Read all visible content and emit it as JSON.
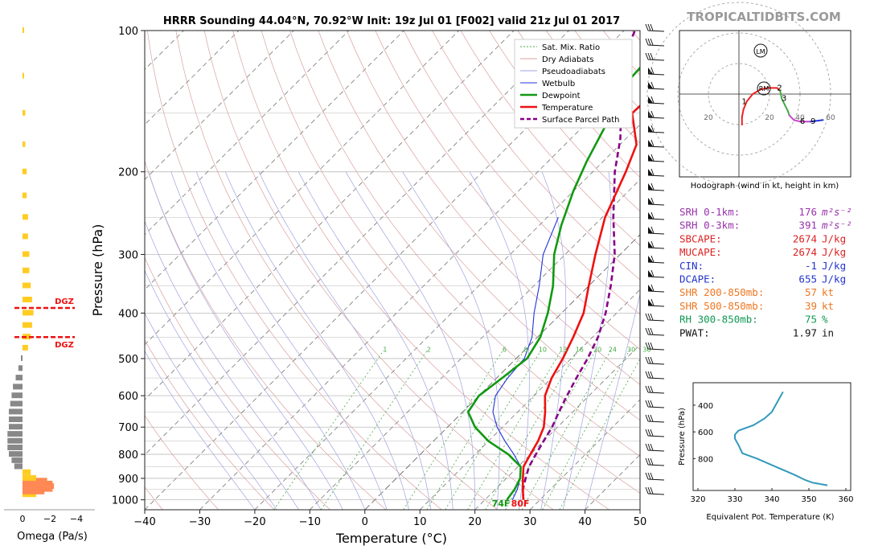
{
  "header": {
    "title": "HRRR Sounding 44.04°N, 70.92°W Init: 19z Jul 01 [F002] valid 21z Jul 01 2017",
    "brand": "TROPICALTIDBITS.COM"
  },
  "colors": {
    "temperature": "#ee1111",
    "dewpoint": "#119911",
    "wetbulb": "#2233dd",
    "parcel": "#880088",
    "dry_adiabat": "#d9a0a0",
    "pseudo_adiabat": "#9fa3dd",
    "mix_ratio": "#44aa44",
    "omega_pos": "#ffcc22",
    "omega_neg": "#888888",
    "omega_strong": "#ff8855",
    "dgz": "#ee1111",
    "theta_e": "#3399bb"
  },
  "omega_panel": {
    "xlabel": "Omega (Pa/s)",
    "ticks": [
      "0",
      "−2",
      "−4"
    ],
    "dgz_label": "DGZ",
    "dgz_levels_hpa": [
      390,
      450
    ]
  },
  "legend": {
    "items": [
      {
        "label": "Sat. Mix. Ratio",
        "style": "dotted",
        "color": "#44aa44"
      },
      {
        "label": "Dry Adiabats",
        "style": "solid-thin",
        "color": "#d9a0a0"
      },
      {
        "label": "Pseudoadiabats",
        "style": "solid-thin",
        "color": "#9fa3dd"
      },
      {
        "label": "Wetbulb",
        "style": "solid",
        "color": "#2233dd"
      },
      {
        "label": "Dewpoint",
        "style": "solid-thick",
        "color": "#119911"
      },
      {
        "label": "Temperature",
        "style": "solid-thick",
        "color": "#ee1111"
      },
      {
        "label": "Surface Parcel Path",
        "style": "dashed",
        "color": "#880088"
      }
    ]
  },
  "surface_labels": {
    "dewpoint": "74F",
    "temperature": "80F"
  },
  "mixing_ratio_labels": [
    "1",
    "2",
    "6",
    "8",
    "10",
    "13",
    "16",
    "20",
    "24",
    "30",
    "36"
  ],
  "hodograph": {
    "title": "Hodograph (wind in kt, height in km)",
    "ring_labels": [
      "20",
      "20",
      "40",
      "60"
    ],
    "height_labels": [
      "1",
      "2",
      "3",
      "6",
      "9"
    ],
    "lm_label": "LM",
    "rm_label": "RM"
  },
  "indices": [
    {
      "label": "SRH 0-1km:",
      "value": "176",
      "unit": "m²s⁻²",
      "color": "#9933aa"
    },
    {
      "label": "SRH 0-3km:",
      "value": "391",
      "unit": "m²s⁻²",
      "color": "#9933aa"
    },
    {
      "label": "SBCAPE:",
      "value": "2674",
      "unit": "J/kg",
      "color": "#dd2222"
    },
    {
      "label": "MUCAPE:",
      "value": "2674",
      "unit": "J/kg",
      "color": "#dd2222"
    },
    {
      "label": "CIN:",
      "value": "-1",
      "unit": "J/kg",
      "color": "#2233cc"
    },
    {
      "label": "DCAPE:",
      "value": "655",
      "unit": "J/kg",
      "color": "#2233cc"
    },
    {
      "label": "SHR 200-850mb:",
      "value": "57",
      "unit": "kt",
      "color": "#ee7722"
    },
    {
      "label": "SHR 500-850mb:",
      "value": "39",
      "unit": "kt",
      "color": "#ee7722"
    },
    {
      "label": "RH 300-850mb:",
      "value": "75",
      "unit": "%",
      "color": "#119955"
    },
    {
      "label": "PWAT:",
      "value": "1.97",
      "unit": "in",
      "color": "#111111"
    }
  ],
  "theta_e_panel": {
    "xlabel": "Equivalent Pot. Temperature (K)",
    "ylabel": "Pressure (hPa)",
    "xticks": [
      "320",
      "330",
      "340",
      "350",
      "360"
    ],
    "yticks": [
      "400",
      "600",
      "800"
    ]
  },
  "chart_data": [
    {
      "type": "line",
      "subtype": "skew-t log-p",
      "title": "HRRR Sounding 44.04°N, 70.92°W Init: 19z Jul 01 [F002] valid 21z Jul 01 2017",
      "xlabel": "Temperature (°C)",
      "ylabel": "Pressure (hPa)",
      "xlim": [
        -40,
        50
      ],
      "ylim": [
        1050,
        100
      ],
      "x_ticks": [
        "−40",
        "−30",
        "−20",
        "−10",
        "0",
        "10",
        "20",
        "30",
        "40",
        "50"
      ],
      "y_ticks": [
        "100",
        "200",
        "300",
        "400",
        "500",
        "600",
        "700",
        "800",
        "900",
        "1000"
      ],
      "y_scale": "log",
      "legend": "top-right",
      "series": [
        {
          "name": "Temperature",
          "points": [
            [
              27,
              1000
            ],
            [
              25,
              950
            ],
            [
              23,
              900
            ],
            [
              21,
              850
            ],
            [
              20,
              800
            ],
            [
              19,
              750
            ],
            [
              17.5,
              700
            ],
            [
              15,
              650
            ],
            [
              12,
              600
            ],
            [
              10,
              550
            ],
            [
              8.5,
              500
            ],
            [
              6.5,
              450
            ],
            [
              4,
              400
            ],
            [
              0,
              350
            ],
            [
              -4.5,
              300
            ],
            [
              -9.5,
              250
            ],
            [
              -14,
              200
            ],
            [
              -17,
              175
            ],
            [
              -23.5,
              150
            ],
            [
              -23,
              125
            ],
            [
              -21,
              100
            ]
          ]
        },
        {
          "name": "Dewpoint",
          "points": [
            [
              24,
              1000
            ],
            [
              23.5,
              950
            ],
            [
              22.5,
              900
            ],
            [
              20.5,
              850
            ],
            [
              16,
              800
            ],
            [
              10,
              750
            ],
            [
              5,
              700
            ],
            [
              1,
              650
            ],
            [
              0,
              600
            ],
            [
              1,
              550
            ],
            [
              2,
              500
            ],
            [
              0.5,
              450
            ],
            [
              -2.5,
              400
            ],
            [
              -6.5,
              350
            ],
            [
              -12,
              300
            ],
            [
              -16,
              260
            ],
            [
              -20,
              220
            ],
            [
              -23,
              190
            ],
            [
              -26,
              160
            ],
            [
              -30,
              130
            ],
            [
              -31,
              100
            ]
          ]
        },
        {
          "name": "Wetbulb",
          "points": [
            [
              25,
              1000
            ],
            [
              24,
              950
            ],
            [
              22.5,
              900
            ],
            [
              20.5,
              850
            ],
            [
              17,
              800
            ],
            [
              13,
              750
            ],
            [
              9,
              700
            ],
            [
              5.5,
              650
            ],
            [
              3,
              600
            ],
            [
              2,
              550
            ],
            [
              1.5,
              500
            ],
            [
              -1,
              450
            ],
            [
              -5,
              400
            ],
            [
              -9,
              350
            ],
            [
              -14,
              300
            ],
            [
              -18,
              250
            ]
          ]
        },
        {
          "name": "Surface Parcel Path",
          "points": [
            [
              27,
              1000
            ],
            [
              25,
              950
            ],
            [
              23.5,
              900
            ],
            [
              22,
              850
            ],
            [
              21,
              800
            ],
            [
              20,
              750
            ],
            [
              19,
              700
            ],
            [
              17.5,
              650
            ],
            [
              16,
              600
            ],
            [
              14.5,
              550
            ],
            [
              13,
              500
            ],
            [
              11,
              450
            ],
            [
              8,
              400
            ],
            [
              4,
              350
            ],
            [
              -1,
              300
            ],
            [
              -8,
              250
            ],
            [
              -16,
              200
            ],
            [
              -21,
              170
            ],
            [
              -28,
              140
            ],
            [
              -34,
              120
            ],
            [
              -36,
              110
            ],
            [
              -38,
              100
            ]
          ]
        }
      ]
    },
    {
      "type": "line",
      "title": "Hodograph",
      "xlabel": "Hodograph (wind in kt, height in km)",
      "points_kt": [
        [
          2,
          -20
        ],
        [
          2,
          -15
        ],
        [
          3,
          -10
        ],
        [
          5,
          -5
        ],
        [
          9,
          0
        ],
        [
          14,
          3
        ],
        [
          19,
          4
        ],
        [
          25,
          4
        ],
        [
          27,
          2
        ],
        [
          28,
          -3
        ],
        [
          30,
          -7
        ],
        [
          32,
          -11
        ],
        [
          33,
          -14
        ],
        [
          36,
          -17
        ],
        [
          40,
          -18
        ],
        [
          47,
          -18
        ],
        [
          55,
          -17
        ]
      ]
    },
    {
      "type": "line",
      "title": "Equivalent Pot. Temperature",
      "xlabel": "Equivalent Pot. Temperature (K)",
      "ylabel": "Pressure (hPa)",
      "xlim": [
        320,
        360
      ],
      "ylim": [
        1000,
        300
      ],
      "points": [
        [
          355,
          1000
        ],
        [
          351,
          980
        ],
        [
          349,
          960
        ],
        [
          346,
          920
        ],
        [
          341,
          860
        ],
        [
          336,
          800
        ],
        [
          332,
          760
        ],
        [
          331,
          700
        ],
        [
          330,
          650
        ],
        [
          330,
          620
        ],
        [
          331,
          590
        ],
        [
          335,
          550
        ],
        [
          338,
          500
        ],
        [
          340,
          450
        ],
        [
          341,
          400
        ],
        [
          342,
          350
        ],
        [
          343,
          300
        ]
      ]
    },
    {
      "type": "bar",
      "title": "Omega",
      "xlabel": "Omega (Pa/s)",
      "levels_hpa": [
        975,
        962,
        950,
        937,
        925,
        912,
        900,
        875,
        850,
        825,
        800,
        775,
        750,
        725,
        700,
        675,
        650,
        625,
        600,
        575,
        550,
        525,
        500,
        475,
        450,
        425,
        400,
        375,
        350,
        325,
        300,
        275,
        250,
        225,
        200,
        175,
        150,
        125,
        100
      ],
      "values": [
        -1.0,
        -1.6,
        -2.2,
        -2.3,
        -2.2,
        -1.8,
        -1.0,
        -0.6,
        0.6,
        0.8,
        1.0,
        1.1,
        1.1,
        1.1,
        1.0,
        1.0,
        1.0,
        0.9,
        0.8,
        0.7,
        0.5,
        0.3,
        0.1,
        -0.4,
        -0.6,
        -0.7,
        -0.8,
        -0.7,
        -0.6,
        -0.5,
        -0.5,
        -0.4,
        -0.4,
        -0.3,
        -0.3,
        -0.2,
        -0.2,
        -0.1,
        -0.1
      ]
    }
  ]
}
